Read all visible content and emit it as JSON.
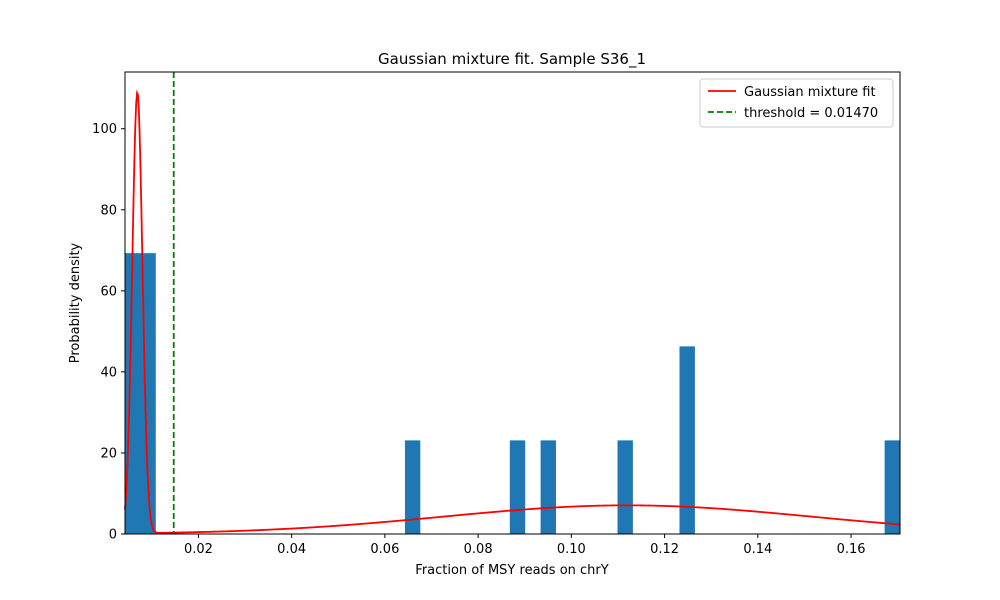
{
  "chart_data": {
    "type": "histogram",
    "title": "Gaussian mixture fit. Sample S36_1",
    "xlabel": "Fraction of MSY reads on chrY",
    "ylabel": "Probability density",
    "xlim": [
      0.00425,
      0.1705
    ],
    "ylim": [
      0,
      114
    ],
    "xticks": [
      0.02,
      0.04,
      0.06,
      0.08,
      0.1,
      0.12,
      0.14,
      0.16
    ],
    "xtick_labels": [
      "0.02",
      "0.04",
      "0.06",
      "0.08",
      "0.10",
      "0.12",
      "0.14",
      "0.16"
    ],
    "yticks": [
      0,
      20,
      40,
      60,
      80,
      100
    ],
    "ytick_labels": [
      "0",
      "20",
      "40",
      "60",
      "80",
      "100"
    ],
    "bar_color": "#1f77b4",
    "bars": [
      {
        "x0": 0.00425,
        "x1": 0.01085,
        "value": 69.3
      },
      {
        "x0": 0.0643,
        "x1": 0.0676,
        "value": 23.1
      },
      {
        "x0": 0.0868,
        "x1": 0.0901,
        "value": 23.1
      },
      {
        "x0": 0.0934,
        "x1": 0.0967,
        "value": 23.1
      },
      {
        "x0": 0.1099,
        "x1": 0.1132,
        "value": 23.1
      },
      {
        "x0": 0.1232,
        "x1": 0.1265,
        "value": 46.3
      },
      {
        "x0": 0.1672,
        "x1": 0.1705,
        "value": 23.1
      }
    ],
    "series": [
      {
        "name": "Gaussian mixture fit",
        "kind": "line",
        "color": "#ff0000",
        "components": [
          {
            "weight": 0.3,
            "mean": 0.0069,
            "sd": 0.0011
          },
          {
            "weight": 0.7,
            "mean": 0.112,
            "sd": 0.0395
          }
        ]
      },
      {
        "name": "threshold = 0.01470",
        "kind": "vline",
        "color": "#008000",
        "x": 0.0147
      }
    ],
    "legend": {
      "position": "top-right",
      "entries": [
        "Gaussian mixture fit",
        "threshold = 0.01470"
      ]
    },
    "grid": false
  }
}
